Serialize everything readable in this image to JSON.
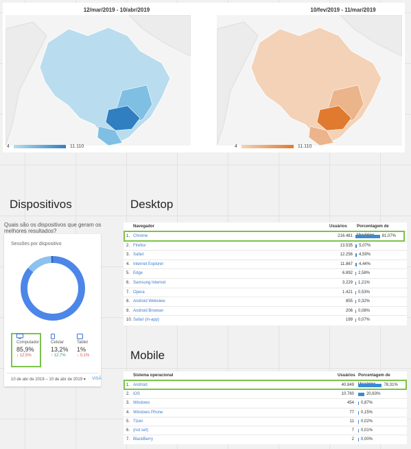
{
  "maps": {
    "left": {
      "title": "12/mar/2019 - 10/abr/2019",
      "legend_min": "4",
      "legend_max": "11.110",
      "color_light": "#b9dcef",
      "color_mid": "#7fbfe3",
      "color_dark": "#2f7fc1"
    },
    "right": {
      "title": "10/fev/2019 - 11/mar/2019",
      "legend_min": "4",
      "legend_max": "11.110",
      "color_light": "#f3d2b7",
      "color_mid": "#ecb48a",
      "color_dark": "#e07a2e"
    }
  },
  "dispositivos": {
    "heading": "Dispositivos",
    "question": "Quais são os dispositivos que geram os melhores resultados?",
    "subtitle": "Sessões por dispositivo",
    "donut": {
      "computador": 85.9,
      "celular": 13.2,
      "tablet": 1.0
    },
    "items": [
      {
        "label": "Computador",
        "pct": "85,9%",
        "change": "↓ 12,5%",
        "change_color": "#d9534f",
        "icon": "desktop-icon"
      },
      {
        "label": "Celular",
        "pct": "13,2%",
        "change": "↑ 12,7%",
        "change_color": "#2e9e5b",
        "icon": "mobile-icon"
      },
      {
        "label": "Tablet",
        "pct": "1%",
        "change": "↓ 0,1%",
        "change_color": "#d9534f",
        "icon": "tablet-icon"
      }
    ],
    "date_range": "10 de abr de 2019 – 10 de abr de 2019",
    "visa": "VISÃ"
  },
  "desktop": {
    "heading": "Desktop",
    "col_name": "Navegador",
    "col_users": "Usuários",
    "col_pct": "Porcentagem de Usuários",
    "rows": [
      {
        "idx": "1.",
        "name": "Chrome",
        "users": "216.481",
        "pct": "81,07%",
        "frac": 0.8107
      },
      {
        "idx": "2.",
        "name": "Firefox",
        "users": "13.535",
        "pct": "5,07%",
        "frac": 0.0507
      },
      {
        "idx": "3.",
        "name": "Safari",
        "users": "12.256",
        "pct": "4,59%",
        "frac": 0.0459
      },
      {
        "idx": "4.",
        "name": "Internet Explorer",
        "users": "11.867",
        "pct": "4,44%",
        "frac": 0.0444
      },
      {
        "idx": "5.",
        "name": "Edge",
        "users": "6.892",
        "pct": "2,58%",
        "frac": 0.0258
      },
      {
        "idx": "6.",
        "name": "Samsung Internet",
        "users": "3.229",
        "pct": "1,21%",
        "frac": 0.0121
      },
      {
        "idx": "7.",
        "name": "Opera",
        "users": "1.421",
        "pct": "0,53%",
        "frac": 0.0053
      },
      {
        "idx": "8.",
        "name": "Android Webview",
        "users": "855",
        "pct": "0,32%",
        "frac": 0.0032
      },
      {
        "idx": "9.",
        "name": "Android Browser",
        "users": "206",
        "pct": "0,08%",
        "frac": 0.0008
      },
      {
        "idx": "10.",
        "name": "Safari (in-app)",
        "users": "199",
        "pct": "0,07%",
        "frac": 0.0007
      }
    ]
  },
  "mobile": {
    "heading": "Mobile",
    "col_name": "Sistema operacional",
    "col_users": "Usuários",
    "col_pct": "Porcentagem de Usuários",
    "rows": [
      {
        "idx": "1.",
        "name": "Android",
        "users": "40.849",
        "pct": "78,31%",
        "frac": 0.7831
      },
      {
        "idx": "2.",
        "name": "iOS",
        "users": "10.760",
        "pct": "20,63%",
        "frac": 0.2063
      },
      {
        "idx": "3.",
        "name": "Windows",
        "users": "454",
        "pct": "0,87%",
        "frac": 0.0087
      },
      {
        "idx": "4.",
        "name": "Windows Phone",
        "users": "77",
        "pct": "0,15%",
        "frac": 0.0015
      },
      {
        "idx": "5.",
        "name": "Tizen",
        "users": "11",
        "pct": "0,02%",
        "frac": 0.0002
      },
      {
        "idx": "6.",
        "name": "(not set)",
        "users": "7",
        "pct": "0,01%",
        "frac": 0.0001
      },
      {
        "idx": "7.",
        "name": "BlackBerry",
        "users": "2",
        "pct": "0,00%",
        "frac": 0.0
      }
    ]
  }
}
